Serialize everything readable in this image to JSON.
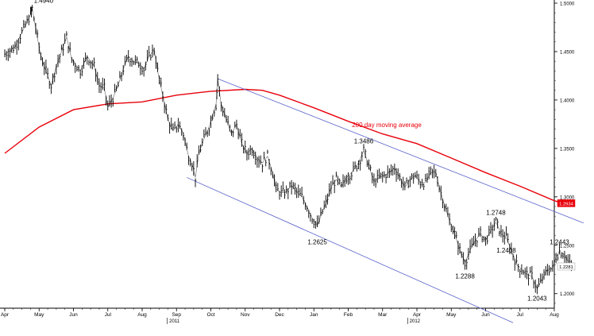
{
  "chart_data": {
    "type": "line",
    "title": "",
    "xlabel": "",
    "ylabel": "",
    "ylim": [
      1.185,
      1.5
    ],
    "grid": false,
    "y_axis_side": "right",
    "x_tick_labels": [
      "Apr",
      "May",
      "Jun",
      "Jul",
      "Aug",
      "Sep",
      "Oct",
      "Nov",
      "Dec",
      "Jan",
      "Feb",
      "Mar",
      "Apr",
      "May",
      "Jun",
      "Jul",
      "Aug"
    ],
    "x_tick_index": [
      0,
      1,
      2,
      3,
      4,
      5,
      6,
      7,
      8,
      9,
      10,
      11,
      12,
      13,
      14,
      15,
      16
    ],
    "year_labels": [
      {
        "text": "2011",
        "month_index": 4.8
      },
      {
        "text": "2012",
        "month_index": 11.8
      }
    ],
    "y_ticks": [
      1.2,
      1.25,
      1.3,
      1.35,
      1.4,
      1.45,
      1.5
    ],
    "y_tick_labels": [
      "1.2000",
      "1.2500",
      "1.3000",
      "1.3500",
      "1.4000",
      "1.4500",
      "1.5000"
    ],
    "price_series": {
      "name": "Price",
      "color": "#000000",
      "points": [
        [
          0.0,
          1.447
        ],
        [
          0.3,
          1.455
        ],
        [
          0.5,
          1.47
        ],
        [
          0.75,
          1.488
        ],
        [
          0.8,
          1.494
        ],
        [
          1.05,
          1.445
        ],
        [
          1.2,
          1.43
        ],
        [
          1.35,
          1.415
        ],
        [
          1.5,
          1.435
        ],
        [
          1.65,
          1.45
        ],
        [
          1.8,
          1.465
        ],
        [
          1.95,
          1.442
        ],
        [
          2.2,
          1.43
        ],
        [
          2.4,
          1.445
        ],
        [
          2.6,
          1.435
        ],
        [
          2.75,
          1.415
        ],
        [
          2.9,
          1.412
        ],
        [
          3.0,
          1.393
        ],
        [
          3.15,
          1.402
        ],
        [
          3.3,
          1.415
        ],
        [
          3.45,
          1.432
        ],
        [
          3.6,
          1.445
        ],
        [
          3.75,
          1.44
        ],
        [
          3.9,
          1.438
        ],
        [
          4.05,
          1.432
        ],
        [
          4.2,
          1.445
        ],
        [
          4.35,
          1.452
        ],
        [
          4.45,
          1.43
        ],
        [
          4.6,
          1.405
        ],
        [
          4.75,
          1.38
        ],
        [
          4.9,
          1.368
        ],
        [
          5.05,
          1.375
        ],
        [
          5.2,
          1.365
        ],
        [
          5.35,
          1.342
        ],
        [
          5.45,
          1.335
        ],
        [
          5.55,
          1.32
        ],
        [
          5.65,
          1.345
        ],
        [
          5.8,
          1.36
        ],
        [
          5.95,
          1.372
        ],
        [
          6.05,
          1.385
        ],
        [
          6.15,
          1.395
        ],
        [
          6.2,
          1.422
        ],
        [
          6.3,
          1.395
        ],
        [
          6.45,
          1.38
        ],
        [
          6.6,
          1.365
        ],
        [
          6.75,
          1.375
        ],
        [
          6.9,
          1.355
        ],
        [
          7.05,
          1.345
        ],
        [
          7.2,
          1.35
        ],
        [
          7.35,
          1.34
        ],
        [
          7.5,
          1.335
        ],
        [
          7.65,
          1.342
        ],
        [
          7.8,
          1.325
        ],
        [
          7.9,
          1.308
        ],
        [
          8.05,
          1.304
        ],
        [
          8.2,
          1.305
        ],
        [
          8.35,
          1.312
        ],
        [
          8.5,
          1.305
        ],
        [
          8.65,
          1.3
        ],
        [
          8.8,
          1.29
        ],
        [
          8.95,
          1.278
        ],
        [
          9.1,
          1.27
        ],
        [
          9.25,
          1.285
        ],
        [
          9.35,
          1.293
        ],
        [
          9.5,
          1.31
        ],
        [
          9.65,
          1.318
        ],
        [
          9.8,
          1.31
        ],
        [
          9.95,
          1.32
        ],
        [
          10.1,
          1.325
        ],
        [
          10.3,
          1.335
        ],
        [
          10.45,
          1.348
        ],
        [
          10.6,
          1.332
        ],
        [
          10.75,
          1.315
        ],
        [
          10.9,
          1.32
        ],
        [
          11.05,
          1.322
        ],
        [
          11.2,
          1.325
        ],
        [
          11.35,
          1.33
        ],
        [
          11.5,
          1.32
        ],
        [
          11.65,
          1.31
        ],
        [
          11.8,
          1.318
        ],
        [
          11.95,
          1.322
        ],
        [
          12.1,
          1.315
        ],
        [
          12.25,
          1.315
        ],
        [
          12.4,
          1.325
        ],
        [
          12.55,
          1.325
        ],
        [
          12.65,
          1.31
        ],
        [
          12.8,
          1.292
        ],
        [
          12.95,
          1.275
        ],
        [
          13.1,
          1.262
        ],
        [
          13.25,
          1.245
        ],
        [
          13.4,
          1.232
        ],
        [
          13.55,
          1.245
        ],
        [
          13.7,
          1.255
        ],
        [
          13.85,
          1.262
        ],
        [
          14.0,
          1.255
        ],
        [
          14.15,
          1.265
        ],
        [
          14.3,
          1.274
        ],
        [
          14.45,
          1.262
        ],
        [
          14.6,
          1.258
        ],
        [
          14.75,
          1.245
        ],
        [
          14.9,
          1.23
        ],
        [
          15.05,
          1.225
        ],
        [
          15.2,
          1.22
        ],
        [
          15.35,
          1.218
        ],
        [
          15.5,
          1.205
        ],
        [
          15.65,
          1.215
        ],
        [
          15.8,
          1.225
        ],
        [
          15.95,
          1.226
        ],
        [
          16.05,
          1.238
        ],
        [
          16.15,
          1.244
        ],
        [
          16.3,
          1.24
        ],
        [
          16.45,
          1.23
        ],
        [
          16.55,
          1.23
        ]
      ]
    },
    "moving_average": {
      "name": "200 day moving average",
      "color": "#e8000b",
      "points": [
        [
          0.0,
          1.345
        ],
        [
          1.0,
          1.372
        ],
        [
          2.0,
          1.39
        ],
        [
          3.0,
          1.396
        ],
        [
          4.0,
          1.398
        ],
        [
          5.0,
          1.405
        ],
        [
          6.0,
          1.409
        ],
        [
          7.0,
          1.411
        ],
        [
          7.5,
          1.41
        ],
        [
          8.0,
          1.405
        ],
        [
          9.0,
          1.392
        ],
        [
          10.0,
          1.378
        ],
        [
          11.0,
          1.365
        ],
        [
          12.0,
          1.355
        ],
        [
          13.0,
          1.34
        ],
        [
          14.0,
          1.325
        ],
        [
          15.0,
          1.311
        ],
        [
          16.0,
          1.296
        ],
        [
          16.6,
          1.29
        ]
      ]
    },
    "channel_lines": [
      {
        "name": "upper-channel",
        "color": "#5b63c9",
        "start": [
          6.2,
          1.422
        ],
        "end": [
          16.85,
          1.273
        ]
      },
      {
        "name": "lower-channel",
        "color": "#5b63c9",
        "start": [
          5.3,
          1.32
        ],
        "end": [
          14.8,
          1.17
        ]
      }
    ],
    "annotations": [
      {
        "text": "1.4940",
        "x": 0.8,
        "y": 1.494,
        "anchor": "start",
        "dx": 2,
        "dy": -8
      },
      {
        "text": "1.3486",
        "x": 10.45,
        "y": 1.3486,
        "anchor": "middle",
        "dx": 0,
        "dy": -8
      },
      {
        "text": "1.2625",
        "x": 9.1,
        "y": 1.2625,
        "anchor": "middle",
        "dx": 0,
        "dy": 14
      },
      {
        "text": "1.2748",
        "x": 14.3,
        "y": 1.2748,
        "anchor": "middle",
        "dx": 0,
        "dy": -8
      },
      {
        "text": "1.2288",
        "x": 13.4,
        "y": 1.2288,
        "anchor": "middle",
        "dx": 0,
        "dy": 16
      },
      {
        "text": "1.2408",
        "x": 14.6,
        "y": 1.2408,
        "anchor": "middle",
        "dx": 0,
        "dy": -2
      },
      {
        "text": "1.2443",
        "x": 16.15,
        "y": 1.2443,
        "anchor": "middle",
        "dx": 0,
        "dy": -8
      },
      {
        "text": "1.2043",
        "x": 15.5,
        "y": 1.2043,
        "anchor": "middle",
        "dx": 0,
        "dy": 14
      }
    ],
    "ma_label": {
      "text": "200 day moving average",
      "color": "#e8000b"
    },
    "price_tags": [
      {
        "text": "1.2934",
        "y": 1.2934,
        "bg": "#e8000b",
        "color": "#ffffff"
      },
      {
        "text": "1.2281",
        "y": 1.2281,
        "bg": "#ffffff",
        "color": "#000000"
      }
    ]
  }
}
